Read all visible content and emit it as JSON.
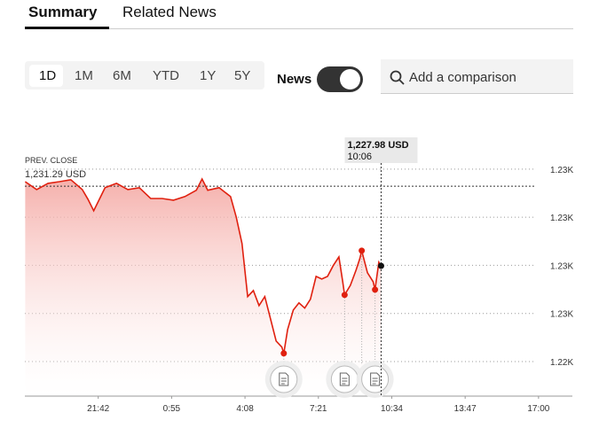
{
  "tabs": [
    "Summary",
    "Related News"
  ],
  "ranges": [
    "1D",
    "1M",
    "6M",
    "YTD",
    "1Y",
    "5Y"
  ],
  "toggle_label": "News",
  "search_placeholder": "Add a comparison",
  "chart_data": {
    "type": "line",
    "color": "#e0200f",
    "x": [
      "18:30",
      "19:00",
      "19:30",
      "20:00",
      "20:30",
      "21:00",
      "21:15",
      "21:30",
      "22:00",
      "22:30",
      "23:00",
      "23:30",
      "0:00",
      "0:30",
      "1:00",
      "1:30",
      "2:00",
      "2:15",
      "2:30",
      "3:00",
      "3:30",
      "3:45",
      "4:00",
      "4:15",
      "4:30",
      "4:45",
      "5:00",
      "5:15",
      "5:30",
      "5:45",
      "5:50",
      "6:00",
      "6:15",
      "6:30",
      "6:45",
      "7:00",
      "7:15",
      "7:30",
      "7:45",
      "8:00",
      "8:15",
      "8:25",
      "8:30",
      "8:45",
      "9:00",
      "9:10",
      "9:15",
      "9:30",
      "9:45",
      "9:50",
      "10:00",
      "10:06"
    ],
    "values": [
      1231.48,
      1231.15,
      1231.41,
      1231.48,
      1231.56,
      1231.15,
      1230.75,
      1230.27,
      1231.23,
      1231.41,
      1231.15,
      1231.23,
      1230.78,
      1230.78,
      1230.71,
      1230.86,
      1231.12,
      1231.59,
      1231.12,
      1231.23,
      1230.86,
      1230.01,
      1228.91,
      1226.7,
      1226.95,
      1226.33,
      1226.7,
      1225.78,
      1224.85,
      1224.6,
      1224.34,
      1225.33,
      1226.14,
      1226.44,
      1226.22,
      1226.59,
      1227.54,
      1227.43,
      1227.54,
      1227.99,
      1228.35,
      1227.32,
      1226.77,
      1227.17,
      1227.8,
      1228.28,
      1228.61,
      1227.69,
      1227.32,
      1226.99,
      1228.13,
      1227.98
    ],
    "xlim": [
      "18:29",
      "18:29"
    ],
    "xticks": [
      "21:42",
      "0:55",
      "4:08",
      "7:21",
      "10:34",
      "13:47",
      "17:00"
    ],
    "ylim": [
      1222.6,
      1232.4
    ],
    "yticks": [
      {
        "value": 1232,
        "label": "1.23K"
      },
      {
        "value": 1230,
        "label": "1.23K"
      },
      {
        "value": 1228,
        "label": "1.23K"
      },
      {
        "value": 1226,
        "label": "1.23K"
      },
      {
        "value": 1224,
        "label": "1.22K"
      }
    ],
    "grid": true,
    "reference_line": {
      "label": "PREV. CLOSE",
      "value": 1231.29,
      "value_label": "1,231.29 USD"
    },
    "tooltip": {
      "value_label": "1,227.98 USD"
    }
  }
}
